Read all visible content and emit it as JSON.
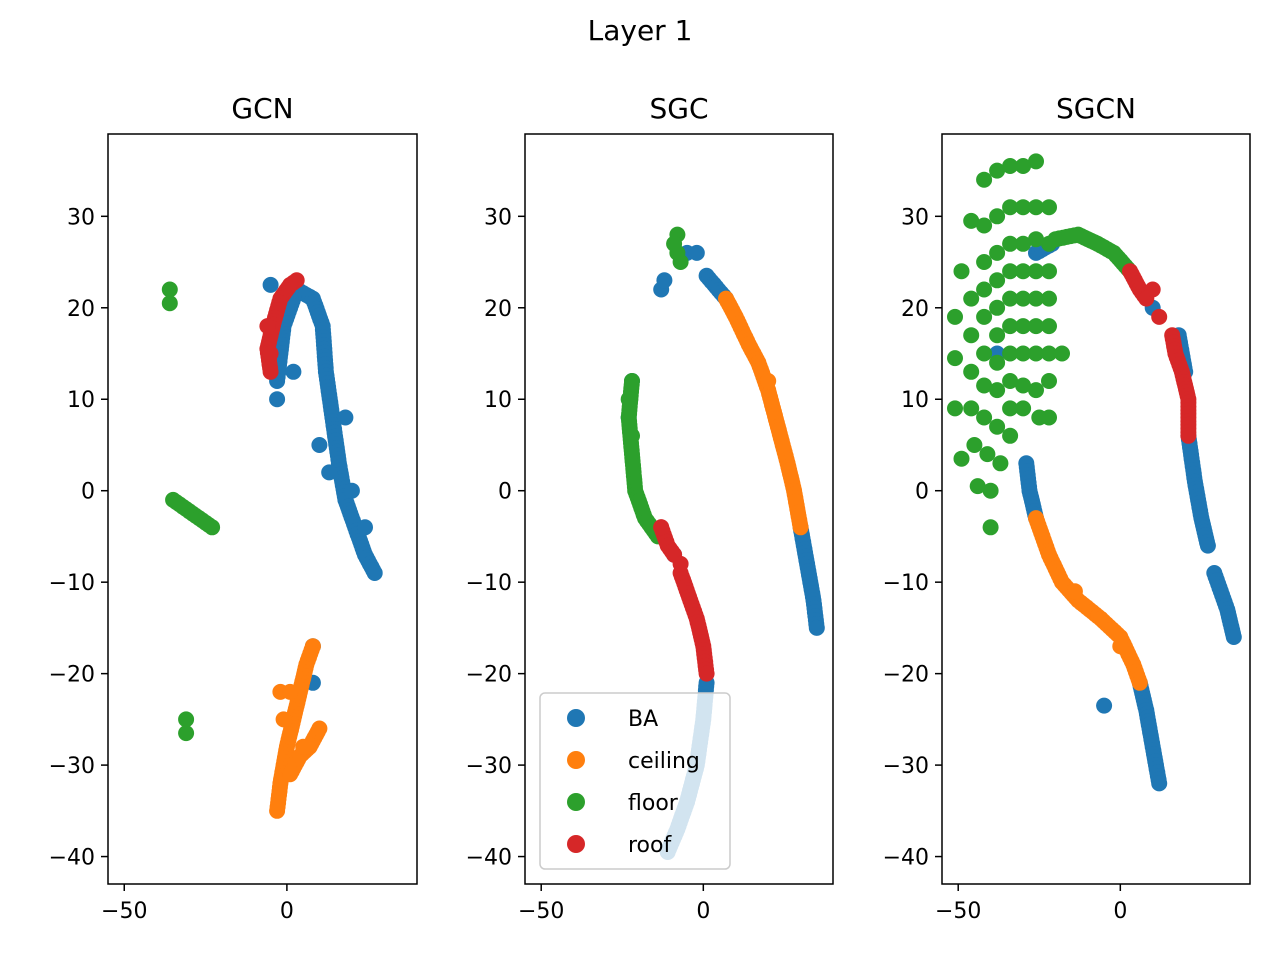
{
  "figure": {
    "suptitle": "Layer 1"
  },
  "colors": {
    "BA": "#1f77b4",
    "ceiling": "#ff7f0e",
    "floor": "#2ca02c",
    "roof": "#d62728"
  },
  "chart_data": [
    {
      "type": "scatter",
      "title": "GCN",
      "xlim": [
        -55,
        40
      ],
      "ylim": [
        -43,
        39
      ],
      "xticks": [
        -50,
        0
      ],
      "yticks": [
        -40,
        -30,
        -20,
        -10,
        0,
        10,
        20,
        30
      ],
      "tick_labels_x": [
        "−50",
        "0"
      ],
      "tick_labels_y": [
        "−40",
        "−30",
        "−20",
        "−10",
        "0",
        "10",
        "20",
        "30"
      ],
      "series": [
        {
          "name": "BA",
          "segments": [
            [
              [
                -3,
                12
              ],
              [
                -1,
                18
              ],
              [
                3,
                22
              ],
              [
                8,
                21
              ],
              [
                11,
                18
              ],
              [
                12,
                13
              ],
              [
                14,
                8
              ],
              [
                16,
                3
              ],
              [
                18,
                -1
              ],
              [
                21,
                -4
              ],
              [
                24,
                -7
              ],
              [
                27,
                -9
              ]
            ]
          ],
          "blobs": [
            [
              -5,
              22.5
            ],
            [
              0,
              20
            ],
            [
              -3,
              10
            ],
            [
              2,
              13
            ],
            [
              13,
              2
            ],
            [
              18,
              8
            ],
            [
              10,
              5
            ],
            [
              20,
              0
            ],
            [
              24,
              -4
            ],
            [
              8,
              -17
            ],
            [
              8,
              -21
            ]
          ]
        },
        {
          "name": "ceiling",
          "segments": [
            [
              [
                -3,
                -35
              ],
              [
                -2,
                -32
              ],
              [
                0,
                -28
              ],
              [
                2,
                -25
              ],
              [
                4,
                -22
              ],
              [
                6,
                -19
              ],
              [
                8,
                -17
              ]
            ],
            [
              [
                1,
                -31
              ],
              [
                4,
                -29
              ],
              [
                7,
                -28
              ],
              [
                10,
                -26
              ]
            ]
          ],
          "blobs": [
            [
              -2,
              -22
            ],
            [
              -1,
              -25
            ],
            [
              1,
              -22
            ],
            [
              5,
              -28
            ]
          ]
        },
        {
          "name": "floor",
          "segments": [
            [
              [
                -35,
                -1
              ],
              [
                -31,
                -2
              ],
              [
                -27,
                -3
              ],
              [
                -23,
                -4
              ]
            ]
          ],
          "blobs": [
            [
              -36,
              22
            ],
            [
              -36,
              20.5
            ],
            [
              -31,
              -25
            ],
            [
              -31,
              -26.5
            ]
          ]
        },
        {
          "name": "roof",
          "segments": [
            [
              [
                3,
                23
              ],
              [
                1,
                22.5
              ],
              [
                -2,
                21
              ],
              [
                -4,
                18.5
              ],
              [
                -6,
                15.5
              ],
              [
                -5,
                13
              ]
            ]
          ],
          "blobs": [
            [
              -6,
              18
            ],
            [
              -5,
              15
            ]
          ]
        }
      ]
    },
    {
      "type": "scatter",
      "title": "SGC",
      "xlim": [
        -55,
        40
      ],
      "ylim": [
        -43,
        39
      ],
      "xticks": [
        -50,
        0
      ],
      "yticks": [
        -40,
        -30,
        -20,
        -10,
        0,
        10,
        20,
        30
      ],
      "tick_labels_x": [
        "−50",
        "0"
      ],
      "tick_labels_y": [
        "−40",
        "−30",
        "−20",
        "−10",
        "0",
        "10",
        "20",
        "30"
      ],
      "legend": {
        "placement": "lower-left",
        "entries": [
          "BA",
          "ceiling",
          "floor",
          "roof"
        ]
      },
      "series": [
        {
          "name": "BA",
          "segments": [
            [
              [
                1,
                23.5
              ],
              [
                7,
                21
              ]
            ],
            [
              [
                30,
                -4
              ],
              [
                32,
                -8
              ],
              [
                34,
                -12
              ],
              [
                35,
                -15
              ]
            ],
            [
              [
                1,
                -21
              ],
              [
                0,
                -25
              ],
              [
                -2,
                -30
              ],
              [
                -5,
                -34
              ],
              [
                -8,
                -37
              ],
              [
                -11,
                -39.5
              ]
            ]
          ],
          "blobs": [
            [
              -13,
              22
            ],
            [
              -12,
              23
            ],
            [
              -22,
              12
            ],
            [
              -23,
              8
            ],
            [
              -5,
              26
            ],
            [
              -2,
              26
            ],
            [
              -9,
              -7
            ]
          ]
        },
        {
          "name": "ceiling",
          "segments": [
            [
              [
                7,
                21
              ],
              [
                10,
                19
              ],
              [
                14,
                16
              ],
              [
                17,
                14
              ],
              [
                20,
                11
              ],
              [
                23,
                7
              ],
              [
                26,
                3
              ],
              [
                28,
                0
              ],
              [
                30,
                -4
              ]
            ]
          ],
          "blobs": [
            [
              20,
              12
            ]
          ]
        },
        {
          "name": "floor",
          "segments": [
            [
              [
                -22,
                12
              ],
              [
                -23,
                8
              ],
              [
                -22,
                4
              ],
              [
                -21,
                0
              ],
              [
                -18,
                -3
              ],
              [
                -14,
                -5
              ]
            ]
          ],
          "blobs": [
            [
              -8,
              26
            ],
            [
              -8,
              28
            ],
            [
              -7,
              25
            ],
            [
              -9,
              27
            ],
            [
              -23,
              10
            ],
            [
              -22,
              6
            ]
          ]
        },
        {
          "name": "roof",
          "segments": [
            [
              [
                -13,
                -4
              ],
              [
                -11,
                -6
              ],
              [
                -9,
                -7
              ]
            ],
            [
              [
                -7,
                -9
              ],
              [
                -4,
                -12
              ],
              [
                -2,
                -14
              ],
              [
                0,
                -17
              ],
              [
                1,
                -20
              ]
            ]
          ],
          "blobs": [
            [
              -13,
              -4
            ],
            [
              -7,
              -8
            ]
          ]
        }
      ]
    },
    {
      "type": "scatter",
      "title": "SGCN",
      "xlim": [
        -55,
        40
      ],
      "ylim": [
        -43,
        39
      ],
      "xticks": [
        -50,
        0
      ],
      "yticks": [
        -40,
        -30,
        -20,
        -10,
        0,
        10,
        20,
        30
      ],
      "tick_labels_x": [
        "−50",
        "0"
      ],
      "tick_labels_y": [
        "−40",
        "−30",
        "−20",
        "−10",
        "0",
        "10",
        "20",
        "30"
      ],
      "series": [
        {
          "name": "BA",
          "segments": [
            [
              [
                -29,
                3
              ],
              [
                -28,
                0
              ],
              [
                -26,
                -3
              ]
            ],
            [
              [
                -26,
                26
              ],
              [
                -21,
                27
              ]
            ],
            [
              [
                18,
                17
              ],
              [
                20,
                13
              ]
            ],
            [
              [
                21,
                6
              ],
              [
                23,
                1
              ],
              [
                25,
                -3
              ],
              [
                27,
                -6
              ]
            ],
            [
              [
                29,
                -9
              ],
              [
                31,
                -11
              ],
              [
                33,
                -13
              ],
              [
                35,
                -16
              ]
            ],
            [
              [
                6,
                -21
              ],
              [
                8,
                -24
              ],
              [
                10,
                -28
              ],
              [
                12,
                -32
              ]
            ]
          ],
          "blobs": [
            [
              -38,
              15
            ],
            [
              -5,
              -23.5
            ],
            [
              10,
              20
            ]
          ]
        },
        {
          "name": "ceiling",
          "segments": [
            [
              [
                -26,
                -3
              ],
              [
                -22,
                -7
              ],
              [
                -18,
                -10
              ],
              [
                -13,
                -12
              ],
              [
                -6,
                -14
              ],
              [
                0,
                -16
              ],
              [
                4,
                -19
              ],
              [
                6,
                -21
              ]
            ]
          ],
          "blobs": [
            [
              -14,
              -11
            ],
            [
              0,
              -17
            ]
          ]
        },
        {
          "name": "floor",
          "segments": [
            [
              [
                -20,
                27.5
              ],
              [
                -13,
                28
              ],
              [
                -7,
                27
              ],
              [
                -2,
                26
              ],
              [
                3,
                24
              ]
            ]
          ],
          "blobs": [
            [
              -51,
              19
            ],
            [
              -51,
              14.5
            ],
            [
              -51,
              9
            ],
            [
              -49,
              24
            ],
            [
              -49,
              3.5
            ],
            [
              -46,
              29.5
            ],
            [
              -46,
              21
            ],
            [
              -46,
              17
            ],
            [
              -46,
              13
            ],
            [
              -46,
              9
            ],
            [
              -45,
              5
            ],
            [
              -44,
              0.5
            ],
            [
              -42,
              34
            ],
            [
              -42,
              29
            ],
            [
              -42,
              25
            ],
            [
              -42,
              22
            ],
            [
              -42,
              19
            ],
            [
              -42,
              15
            ],
            [
              -42,
              11.5
            ],
            [
              -42,
              8
            ],
            [
              -41,
              4
            ],
            [
              -40,
              0
            ],
            [
              -40,
              -4
            ],
            [
              -38,
              35
            ],
            [
              -38,
              30
            ],
            [
              -38,
              26
            ],
            [
              -38,
              23
            ],
            [
              -38,
              20
            ],
            [
              -38,
              17
            ],
            [
              -38,
              14
            ],
            [
              -38,
              11
            ],
            [
              -38,
              7
            ],
            [
              -37,
              3
            ],
            [
              -34,
              35.5
            ],
            [
              -34,
              31
            ],
            [
              -34,
              27
            ],
            [
              -34,
              24
            ],
            [
              -34,
              21
            ],
            [
              -34,
              18
            ],
            [
              -34,
              15
            ],
            [
              -34,
              12
            ],
            [
              -34,
              9
            ],
            [
              -34,
              6
            ],
            [
              -30,
              35.5
            ],
            [
              -30,
              31
            ],
            [
              -30,
              27
            ],
            [
              -30,
              24
            ],
            [
              -30,
              21
            ],
            [
              -30,
              18
            ],
            [
              -30,
              15
            ],
            [
              -30,
              11.5
            ],
            [
              -30,
              9
            ],
            [
              -26,
              36
            ],
            [
              -26,
              31
            ],
            [
              -26,
              27.5
            ],
            [
              -26,
              24
            ],
            [
              -26,
              21
            ],
            [
              -26,
              18
            ],
            [
              -26,
              15
            ],
            [
              -26,
              11
            ],
            [
              -25,
              8
            ],
            [
              -22,
              31
            ],
            [
              -22,
              27
            ],
            [
              -22,
              24
            ],
            [
              -22,
              21
            ],
            [
              -22,
              18
            ],
            [
              -22,
              15
            ],
            [
              -22,
              12
            ],
            [
              -22,
              8
            ],
            [
              -18,
              15
            ]
          ]
        },
        {
          "name": "roof",
          "segments": [
            [
              [
                3,
                24
              ],
              [
                6,
                22
              ],
              [
                8,
                21
              ]
            ],
            [
              [
                16,
                17
              ],
              [
                17,
                15
              ],
              [
                19,
                13
              ],
              [
                21,
                10
              ],
              [
                21,
                6
              ]
            ]
          ],
          "blobs": [
            [
              10,
              22
            ],
            [
              12,
              19
            ]
          ]
        }
      ]
    }
  ]
}
